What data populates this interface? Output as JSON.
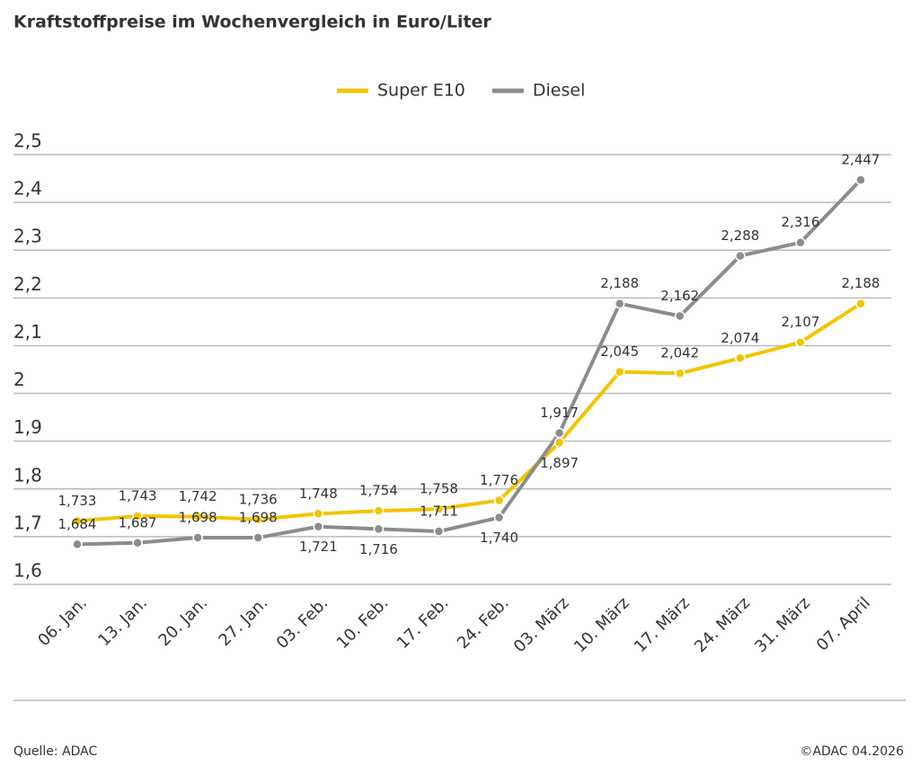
{
  "chart_data": {
    "type": "line",
    "title": "Kraftstoffpreise im Wochenvergleich in Euro/Liter",
    "categories": [
      "06. Jan.",
      "13. Jan.",
      "20. Jan.",
      "27. Jan.",
      "03. Feb.",
      "10. Feb.",
      "17. Feb.",
      "24. Feb.",
      "03. März",
      "10. März",
      "17. März",
      "24. März",
      "31. März",
      "07. April"
    ],
    "series": [
      {
        "name": "Super E10",
        "color": "#f2c500",
        "values": [
          1.733,
          1.743,
          1.742,
          1.736,
          1.748,
          1.754,
          1.758,
          1.776,
          1.897,
          2.045,
          2.042,
          2.074,
          2.107,
          2.188
        ],
        "value_labels": [
          "1,733",
          "1,743",
          "1,742",
          "1,736",
          "1,748",
          "1,754",
          "1,758",
          "1,776",
          "1,897",
          "2,045",
          "2,042",
          "2,074",
          "2,107",
          "2,188"
        ]
      },
      {
        "name": "Diesel",
        "color": "#8c8c8c",
        "values": [
          1.684,
          1.687,
          1.698,
          1.698,
          1.721,
          1.716,
          1.711,
          1.74,
          1.917,
          2.188,
          2.162,
          2.288,
          2.316,
          2.447
        ],
        "value_labels": [
          "1,684",
          "1,687",
          "1,698",
          "1,698",
          "1,721",
          "1,716",
          "1,711",
          "1,740",
          "1,917",
          "2,188",
          "2,162",
          "2,288",
          "2,316",
          "2,447"
        ]
      }
    ],
    "ylim": [
      1.6,
      2.5
    ],
    "yticks": [
      {
        "value": 1.6,
        "label": "1,6"
      },
      {
        "value": 1.7,
        "label": "1,7"
      },
      {
        "value": 1.8,
        "label": "1,8"
      },
      {
        "value": 1.9,
        "label": "1,9"
      },
      2,
      {
        "value": 2.1,
        "label": "2,1"
      },
      {
        "value": 2.2,
        "label": "2,2"
      },
      {
        "value": 2.3,
        "label": "2,3"
      },
      {
        "value": 2.4,
        "label": "2,4"
      },
      {
        "value": 2.5,
        "label": "2,5"
      }
    ],
    "grid": true,
    "source": "Quelle: ADAC",
    "copyright": "©ADAC 04.2026"
  }
}
